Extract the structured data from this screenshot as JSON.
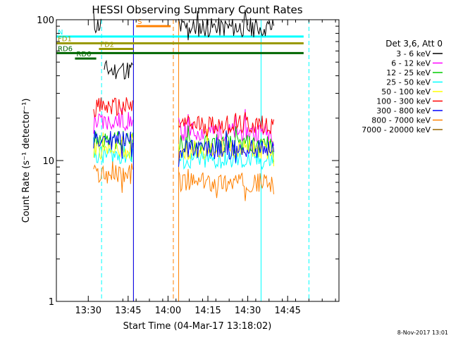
{
  "chart_data": {
    "type": "line",
    "title": "HESSI Observing Summary Count Rates",
    "xlabel": "Start Time (04-Mar-17 13:18:02)",
    "ylabel": "Count Rate (s⁻¹ detector⁻¹)",
    "ylog": true,
    "ylim": [
      1,
      100
    ],
    "x_ticks": [
      "13:30",
      "13:45",
      "14:00",
      "14:15",
      "14:30",
      "14:45"
    ],
    "y_ticks": [
      "1",
      "10",
      "100"
    ],
    "legend_title": "Det 3,6, Att 0",
    "legend_position": "right",
    "footer_date": "8-Nov-2017 13:01",
    "series": [
      {
        "name": "3 - 6 keV",
        "color": "#000000",
        "segments": [
          {
            "start": "13:32",
            "end": "13:35",
            "level": 92
          },
          {
            "start": "13:36",
            "end": "13:47",
            "level": 44
          },
          {
            "start": "14:04",
            "end": "14:40",
            "level": 88
          }
        ]
      },
      {
        "name": "6 - 12 keV",
        "color": "#ff00ff",
        "segments": [
          {
            "start": "13:32",
            "end": "13:47",
            "level": 19
          },
          {
            "start": "14:04",
            "end": "14:40",
            "level": 16
          }
        ]
      },
      {
        "name": "12 - 25 keV",
        "color": "#00cc00",
        "segments": [
          {
            "start": "13:32",
            "end": "13:47",
            "level": 14
          },
          {
            "start": "14:04",
            "end": "14:40",
            "level": 13
          }
        ]
      },
      {
        "name": "25 - 50 keV",
        "color": "#00ffff",
        "segments": [
          {
            "start": "13:32",
            "end": "13:47",
            "level": 11
          },
          {
            "start": "14:04",
            "end": "14:40",
            "level": 10
          }
        ]
      },
      {
        "name": "50 - 100 keV",
        "color": "#ffff00",
        "segments": [
          {
            "start": "13:32",
            "end": "13:47",
            "level": 12
          },
          {
            "start": "14:04",
            "end": "14:40",
            "level": 12
          }
        ]
      },
      {
        "name": "100 - 300 keV",
        "color": "#ff0000",
        "segments": [
          {
            "start": "13:32",
            "end": "13:47",
            "level": 24
          },
          {
            "start": "14:04",
            "end": "14:40",
            "level": 18
          }
        ]
      },
      {
        "name": "300 - 800 keV",
        "color": "#0000ff",
        "segments": [
          {
            "start": "13:32",
            "end": "13:47",
            "level": 14
          },
          {
            "start": "14:04",
            "end": "14:40",
            "level": 12
          }
        ]
      },
      {
        "name": "800 - 7000 keV",
        "color": "#ff8000",
        "segments": [
          {
            "start": "13:32",
            "end": "13:47",
            "level": 8
          },
          {
            "start": "14:04",
            "end": "14:40",
            "level": 7
          }
        ]
      },
      {
        "name": "7000 - 20000 keV",
        "color": "#996600",
        "segments": []
      }
    ],
    "flag_bars": [
      {
        "label": "N",
        "color": "#00ffff",
        "start": "13:18",
        "end": "14:51",
        "level": 76
      },
      {
        "label": "S",
        "color": "#ff8000",
        "start": "13:48",
        "end": "14:01",
        "level": 90
      },
      {
        "label": "FD1",
        "color": "#999900",
        "start": "13:18",
        "end": "14:51",
        "level": 68
      },
      {
        "label": "FD2",
        "color": "#999900",
        "start": "13:34",
        "end": "13:47",
        "level": 62
      },
      {
        "label": "RD6",
        "color": "#006600",
        "start": "13:18",
        "end": "14:51",
        "level": 58
      },
      {
        "label": "RD6",
        "color": "#006600",
        "start": "13:25",
        "end": "13:33",
        "level": 53
      }
    ],
    "vertical_markers": [
      {
        "time": "13:18",
        "color": "#00ffff",
        "style": "solid"
      },
      {
        "time": "13:35",
        "color": "#00ffff",
        "style": "dashed"
      },
      {
        "time": "13:47",
        "color": "#996600",
        "style": "solid"
      },
      {
        "time": "13:47",
        "color": "#0000ff",
        "style": "solid"
      },
      {
        "time": "14:02",
        "color": "#ff8000",
        "style": "dashed"
      },
      {
        "time": "14:04",
        "color": "#ff8000",
        "style": "solid"
      },
      {
        "time": "14:35",
        "color": "#00ffff",
        "style": "solid"
      },
      {
        "time": "14:53",
        "color": "#00ffff",
        "style": "dashed"
      }
    ]
  }
}
